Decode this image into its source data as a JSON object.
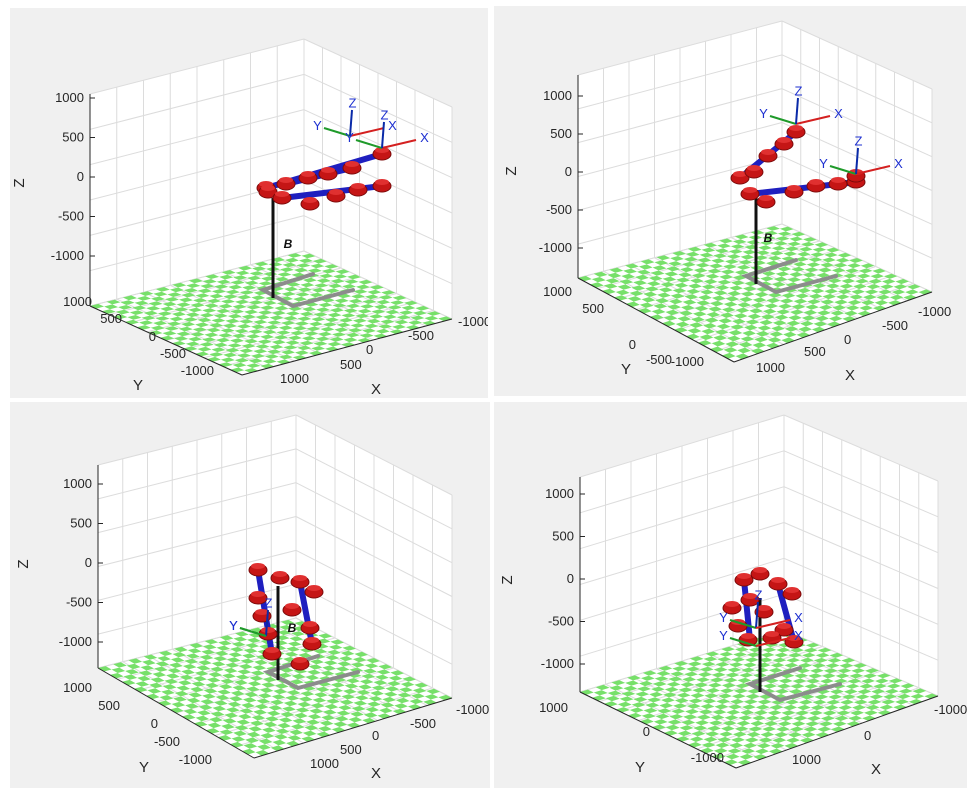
{
  "colors": {
    "panel_bg": "#f0f0f0",
    "axes_bg": "#ffffff",
    "grid": "#dcdcdc",
    "floor_green": "#77e06a",
    "link_blue": "#1f1fbf",
    "joint_red": "#c51515",
    "pedestal": "#111111",
    "base_gray": "#8c8c8c",
    "axis_x": "#d42020",
    "axis_y": "#1f9a2a",
    "axis_z": "#0a2aa8",
    "label_blue": "#1c2fd0"
  },
  "chart_data": [
    {
      "type": "surface3d",
      "z_ticks": [
        "1000",
        "500",
        "0",
        "-500",
        "-1000"
      ],
      "y_ticks": [
        "1000",
        "500",
        "0",
        "-500",
        "-1000"
      ],
      "x_ticks": [
        "1000",
        "500",
        "0",
        "-500",
        "-1000"
      ],
      "xlabel": "X",
      "ylabel": "Y",
      "zlabel": "Z",
      "zlim": [
        -1000,
        1000
      ],
      "ylim": [
        -1000,
        1000
      ],
      "xlim": [
        -1000,
        1000
      ],
      "base_label": "B",
      "frame_labels": [
        "X",
        "Y",
        "Z",
        "X",
        "Y",
        "Z"
      ]
    },
    {
      "type": "surface3d",
      "z_ticks": [
        "1000",
        "500",
        "0",
        "-500",
        "-1000"
      ],
      "y_ticks": [
        "1000",
        "500",
        "0",
        "-500",
        "-1000"
      ],
      "x_ticks": [
        "1000",
        "500",
        "0",
        "-500",
        "-1000"
      ],
      "xlabel": "X",
      "ylabel": "Y",
      "zlabel": "Z",
      "zlim": [
        -1000,
        1000
      ],
      "ylim": [
        -1000,
        1000
      ],
      "xlim": [
        -1000,
        1000
      ],
      "base_label": "B",
      "frame_labels": [
        "X",
        "Y",
        "Z",
        "X",
        "Y",
        "Z"
      ]
    },
    {
      "type": "surface3d",
      "z_ticks": [
        "1000",
        "500",
        "0",
        "-500",
        "-1000"
      ],
      "y_ticks": [
        "1000",
        "500",
        "0",
        "-500",
        "-1000"
      ],
      "x_ticks": [
        "1000",
        "500",
        "0",
        "-500",
        "-1000"
      ],
      "xlabel": "X",
      "ylabel": "Y",
      "zlabel": "Z",
      "zlim": [
        -1000,
        1000
      ],
      "ylim": [
        -1000,
        1000
      ],
      "xlim": [
        -1000,
        1000
      ],
      "base_label": "B",
      "frame_labels": [
        "Y",
        "Z",
        "Y"
      ]
    },
    {
      "type": "surface3d",
      "z_ticks": [
        "1000",
        "500",
        "0",
        "-500",
        "-1000"
      ],
      "y_ticks": [
        "1000",
        "0",
        "-1000"
      ],
      "x_ticks": [
        "1000",
        "0",
        "-1000"
      ],
      "xlabel": "X",
      "ylabel": "Y",
      "zlabel": "Z",
      "zlim": [
        -1000,
        1000
      ],
      "ylim": [
        -1000,
        1000
      ],
      "xlim": [
        -1000,
        1000
      ],
      "base_label": "",
      "frame_labels": [
        "Y",
        "Z",
        "X",
        "Y",
        "X"
      ]
    }
  ]
}
